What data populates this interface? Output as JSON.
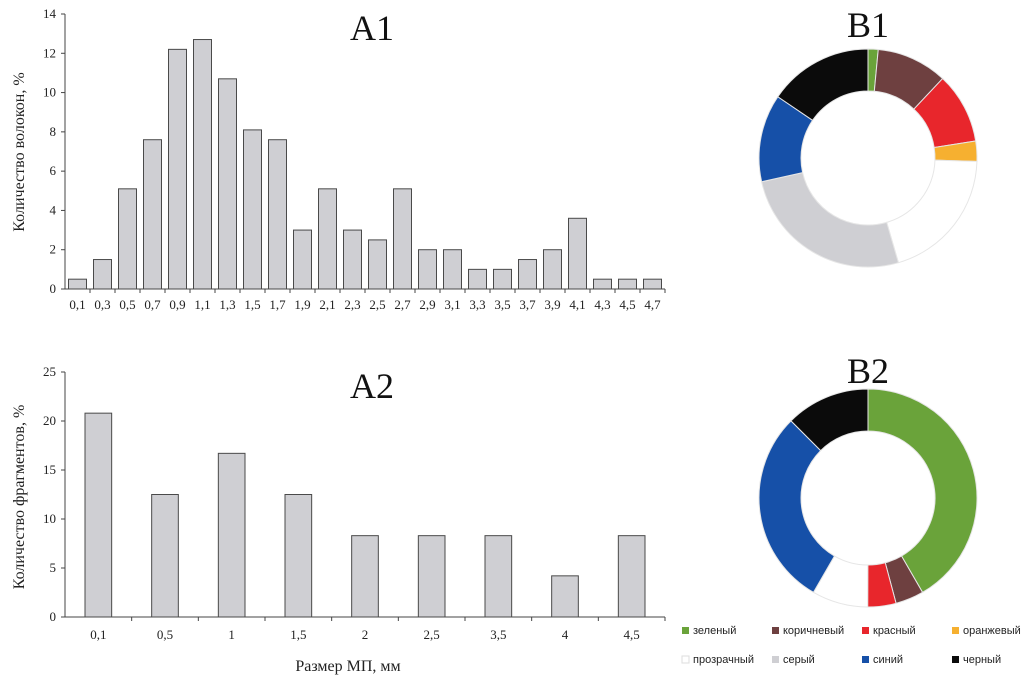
{
  "chart_data": [
    {
      "id": "A1",
      "type": "bar",
      "title": "A1",
      "ylabel": "Количество волокон, %",
      "xlabel": "",
      "ylim": [
        0,
        14
      ],
      "yticks": [
        0,
        2,
        4,
        6,
        8,
        10,
        12,
        14
      ],
      "grid": false,
      "categories": [
        "0,1",
        "0,3",
        "0,5",
        "0,7",
        "0,9",
        "1,1",
        "1,3",
        "1,5",
        "1,7",
        "1,9",
        "2,1",
        "2,3",
        "2,5",
        "2,7",
        "2,9",
        "3,1",
        "3,3",
        "3,5",
        "3,7",
        "3,9",
        "4,1",
        "4,3",
        "4,5",
        "4,7"
      ],
      "values": [
        0.5,
        1.5,
        5.1,
        7.6,
        12.2,
        12.7,
        10.7,
        8.1,
        7.6,
        3.0,
        5.1,
        3.0,
        2.5,
        5.1,
        2.0,
        2.0,
        1.0,
        1.0,
        1.5,
        2.0,
        3.6,
        0.5,
        0.5,
        0.5
      ]
    },
    {
      "id": "A2",
      "type": "bar",
      "title": "A2",
      "ylabel": "Количество фрагментов, %",
      "xlabel": "Размер МП, мм",
      "ylim": [
        0,
        25
      ],
      "yticks": [
        0,
        5,
        10,
        15,
        20,
        25
      ],
      "grid": false,
      "categories": [
        "0,1",
        "0,5",
        "1",
        "1,5",
        "2",
        "2,5",
        "3,5",
        "4",
        "4,5"
      ],
      "values": [
        20.8,
        12.5,
        16.7,
        12.5,
        8.3,
        8.3,
        8.3,
        4.2,
        8.3
      ]
    },
    {
      "id": "B1",
      "type": "pie",
      "title": "B1",
      "donut": true,
      "categories": [
        "зеленый",
        "коричневый",
        "красный",
        "оранжевый",
        "прозрачный",
        "серый",
        "синий",
        "черный"
      ],
      "values": [
        1.5,
        10.5,
        10.5,
        3.0,
        20.0,
        26.0,
        13.0,
        15.5
      ]
    },
    {
      "id": "B2",
      "type": "pie",
      "title": "B2",
      "donut": true,
      "categories": [
        "зеленый",
        "коричневый",
        "красный",
        "оранжевый",
        "прозрачный",
        "серый",
        "синий",
        "черный"
      ],
      "values": [
        41.7,
        4.2,
        4.2,
        0,
        8.3,
        0,
        29.2,
        12.5
      ]
    }
  ],
  "legend": {
    "placement": "bottom-right",
    "items": [
      {
        "label": "зеленый",
        "color": "#6aa33a"
      },
      {
        "label": "коричневый",
        "color": "#6e4040"
      },
      {
        "label": "красный",
        "color": "#e8262c"
      },
      {
        "label": "оранжевый",
        "color": "#f6b030"
      },
      {
        "label": "прозрачный",
        "color": "#ffffff"
      },
      {
        "label": "серый",
        "color": "#cfcfd3"
      },
      {
        "label": "синий",
        "color": "#1650a8"
      },
      {
        "label": "черный",
        "color": "#0b0b0b"
      }
    ]
  },
  "colors": {
    "bar_fill": "#cfcfd3",
    "bar_stroke": "#4a4a4a",
    "donut_stroke": "#e6e6e6"
  }
}
